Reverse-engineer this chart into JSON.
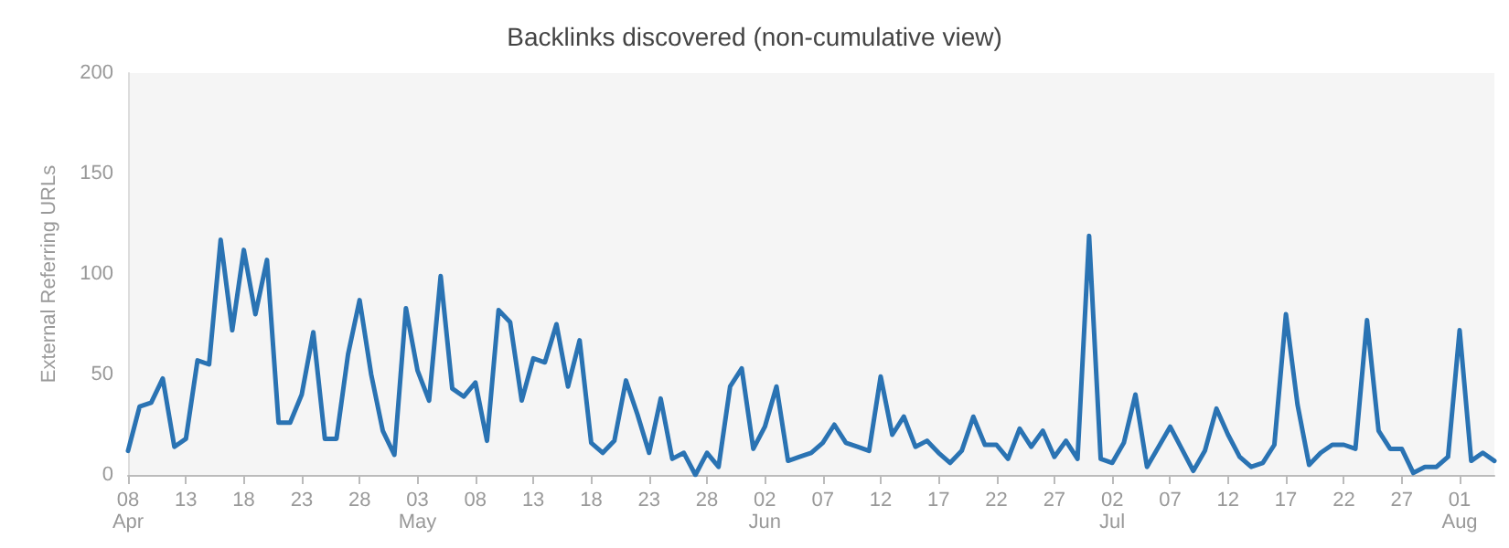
{
  "chart_data": {
    "type": "line",
    "title": "Backlinks discovered (non-cumulative view)",
    "ylabel": "External Referring URLs",
    "x": [
      "--04-08",
      "--04-09",
      "--04-10",
      "--04-11",
      "--04-12",
      "--04-13",
      "--04-14",
      "--04-15",
      "--04-16",
      "--04-17",
      "--04-18",
      "--04-19",
      "--04-20",
      "--04-21",
      "--04-22",
      "--04-23",
      "--04-24",
      "--04-25",
      "--04-26",
      "--04-27",
      "--04-28",
      "--04-29",
      "--04-30",
      "--05-01",
      "--05-02",
      "--05-03",
      "--05-04",
      "--05-05",
      "--05-06",
      "--05-07",
      "--05-08",
      "--05-09",
      "--05-10",
      "--05-11",
      "--05-12",
      "--05-13",
      "--05-14",
      "--05-15",
      "--05-16",
      "--05-17",
      "--05-18",
      "--05-19",
      "--05-20",
      "--05-21",
      "--05-22",
      "--05-23",
      "--05-24",
      "--05-25",
      "--05-26",
      "--05-27",
      "--05-28",
      "--05-29",
      "--05-30",
      "--05-31",
      "--06-01",
      "--06-02",
      "--06-03",
      "--06-04",
      "--06-05",
      "--06-06",
      "--06-07",
      "--06-08",
      "--06-09",
      "--06-10",
      "--06-11",
      "--06-12",
      "--06-13",
      "--06-14",
      "--06-15",
      "--06-16",
      "--06-17",
      "--06-18",
      "--06-19",
      "--06-20",
      "--06-21",
      "--06-22",
      "--06-23",
      "--06-24",
      "--06-25",
      "--06-26",
      "--06-27",
      "--06-28",
      "--06-29",
      "--06-30",
      "--07-01",
      "--07-02",
      "--07-03",
      "--07-04",
      "--07-05",
      "--07-06",
      "--07-07",
      "--07-08",
      "--07-09",
      "--07-10",
      "--07-11",
      "--07-12",
      "--07-13",
      "--07-14",
      "--07-15",
      "--07-16",
      "--07-17",
      "--07-18",
      "--07-19",
      "--07-20",
      "--07-21",
      "--07-22",
      "--07-23",
      "--07-24",
      "--07-25",
      "--07-26",
      "--07-27",
      "--07-28",
      "--07-29",
      "--07-30",
      "--07-31",
      "--08-01",
      "--08-02",
      "--08-03",
      "--08-04"
    ],
    "series": [
      {
        "color": "#2a73b3",
        "values": [
          12,
          34,
          36,
          48,
          14,
          18,
          57,
          55,
          117,
          72,
          112,
          80,
          107,
          26,
          26,
          40,
          71,
          18,
          18,
          60,
          87,
          50,
          22,
          10,
          83,
          52,
          37,
          99,
          43,
          39,
          46,
          17,
          82,
          76,
          37,
          58,
          56,
          75,
          44,
          67,
          16,
          11,
          17,
          47,
          30,
          11,
          38,
          8,
          11,
          0,
          11,
          4,
          44,
          53,
          13,
          24,
          44,
          7,
          9,
          11,
          16,
          25,
          16,
          14,
          12,
          49,
          20,
          29,
          14,
          17,
          11,
          6,
          12,
          29,
          15,
          15,
          8,
          23,
          14,
          22,
          9,
          17,
          8,
          119,
          8,
          6,
          16,
          40,
          4,
          14,
          24,
          13,
          2,
          12,
          33,
          20,
          9,
          4,
          6,
          15,
          80,
          35,
          5,
          11,
          15,
          15,
          13,
          77,
          22,
          13,
          13,
          1,
          4,
          4,
          9,
          72,
          7,
          11,
          7
        ]
      }
    ],
    "xlim": [
      "--04-08",
      "--08-04"
    ],
    "xticks": [
      {
        "value": "--04-08",
        "label": "08\nApr"
      },
      {
        "value": "--04-13",
        "label": "13"
      },
      {
        "value": "--04-18",
        "label": "18"
      },
      {
        "value": "--04-23",
        "label": "23"
      },
      {
        "value": "--04-28",
        "label": "28"
      },
      {
        "value": "--05-03",
        "label": "03\nMay"
      },
      {
        "value": "--05-08",
        "label": "08"
      },
      {
        "value": "--05-13",
        "label": "13"
      },
      {
        "value": "--05-18",
        "label": "18"
      },
      {
        "value": "--05-23",
        "label": "23"
      },
      {
        "value": "--05-28",
        "label": "28"
      },
      {
        "value": "--06-02",
        "label": "02\nJun"
      },
      {
        "value": "--06-07",
        "label": "07"
      },
      {
        "value": "--06-12",
        "label": "12"
      },
      {
        "value": "--06-17",
        "label": "17"
      },
      {
        "value": "--06-22",
        "label": "22"
      },
      {
        "value": "--06-27",
        "label": "27"
      },
      {
        "value": "--07-02",
        "label": "02\nJul"
      },
      {
        "value": "--07-07",
        "label": "07"
      },
      {
        "value": "--07-12",
        "label": "12"
      },
      {
        "value": "--07-17",
        "label": "17"
      },
      {
        "value": "--07-22",
        "label": "22"
      },
      {
        "value": "--07-27",
        "label": "27"
      },
      {
        "value": "--08-01",
        "label": "01\nAug"
      }
    ],
    "ylim": [
      0,
      200
    ],
    "yticks": [
      0,
      50,
      100,
      150,
      200
    ],
    "grid": false,
    "marker": "none",
    "line_style": "solid"
  }
}
